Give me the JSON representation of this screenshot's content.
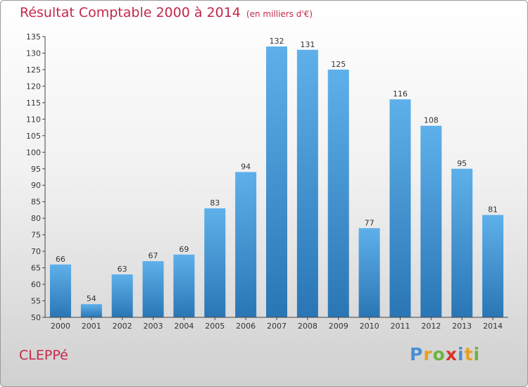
{
  "header": {
    "title": "Résultat Comptable 2000 à 2014",
    "unit": "(en milliers d'€)"
  },
  "footer": {
    "place": "CLEPPé",
    "brand_letters": [
      "P",
      "r",
      "o",
      "x",
      "i",
      "t",
      "i"
    ],
    "brand_colors": [
      "#4a8fd4",
      "#e8a020",
      "#6db33f",
      "#d9342b",
      "#4a8fd4",
      "#e8a020",
      "#6db33f"
    ]
  },
  "colors": {
    "bar_top": "#5eb0ea",
    "bar_bottom": "#2a76b5",
    "accent": "#c4284a"
  },
  "chart_data": {
    "type": "bar",
    "title": "Résultat Comptable 2000 à 2014",
    "subtitle": "(en milliers d'€)",
    "categories": [
      "2000",
      "2001",
      "2002",
      "2003",
      "2004",
      "2005",
      "2006",
      "2007",
      "2008",
      "2009",
      "2010",
      "2011",
      "2012",
      "2013",
      "2014"
    ],
    "values": [
      66,
      54,
      63,
      67,
      69,
      83,
      94,
      132,
      131,
      125,
      77,
      116,
      108,
      95,
      81
    ],
    "ylim": [
      50,
      135
    ],
    "yticks": [
      50,
      55,
      60,
      65,
      70,
      75,
      80,
      85,
      90,
      95,
      100,
      105,
      110,
      115,
      120,
      125,
      130,
      135
    ],
    "grid": false,
    "xlabel": "",
    "ylabel": ""
  }
}
